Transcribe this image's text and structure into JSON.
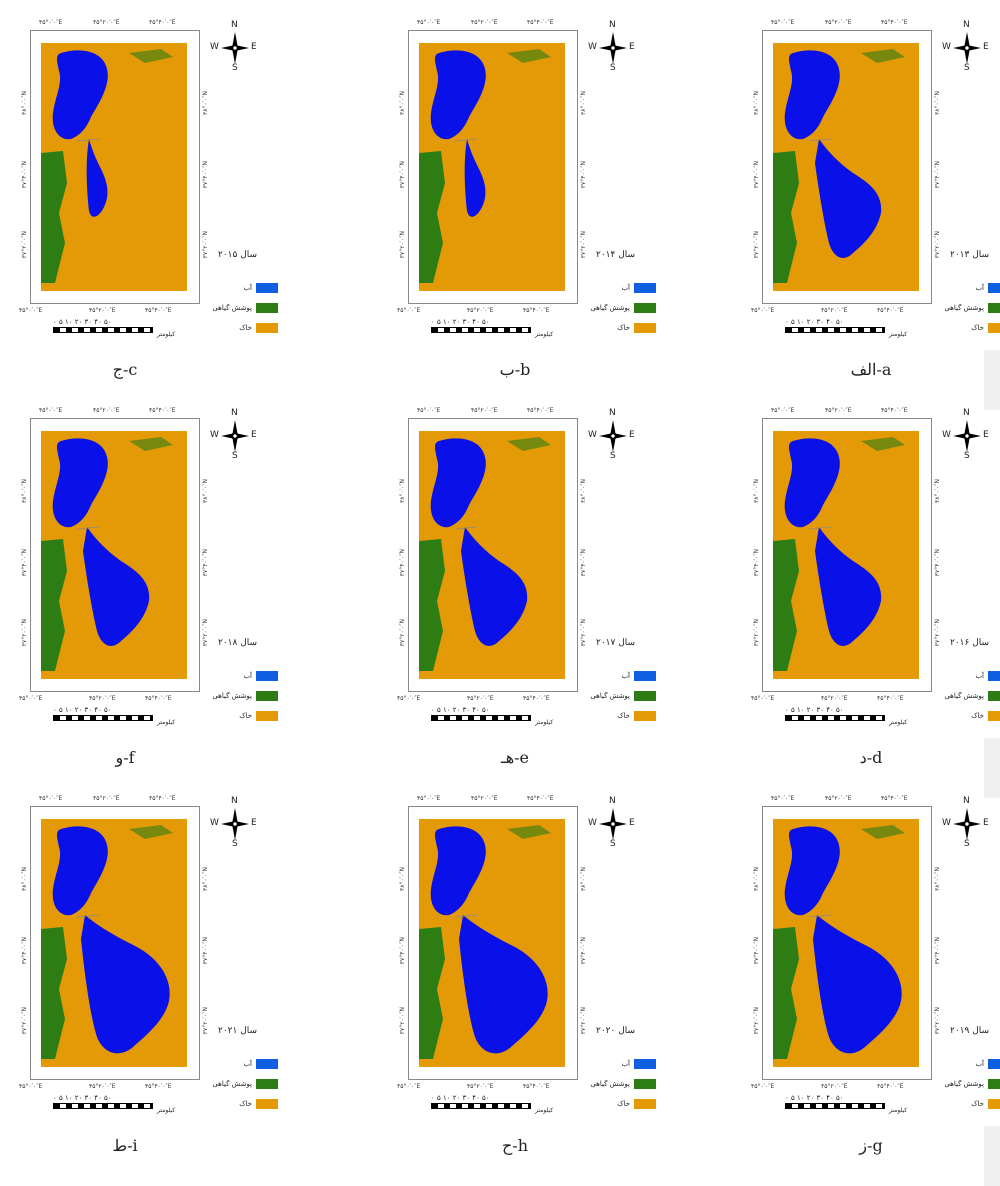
{
  "coords": {
    "top1": "۴۵°۰′۰″E",
    "top2": "۴۵°۲۰′۰″E",
    "top3": "۴۵°۴۰′۰″E",
    "bot1": "۴۵°۰′۰″E",
    "bot2": "۴۵°۲۰′۰″E",
    "bot3": "۴۵°۴۰′۰″E",
    "lat1": "۳۸°۰′۰″N",
    "lat2": "۳۷°۴۰′۰″N",
    "lat3": "۳۷°۲۰′۰″N"
  },
  "compass": {
    "n": "N",
    "s": "S",
    "e": "E",
    "w": "W"
  },
  "legend": {
    "water": "آب",
    "vegetation": "پوشش گیاهی",
    "soil": "خاک"
  },
  "scale": {
    "numbers": "۰ ۵ ۱۰  ۲۰  ۳۰  ۴۰  ۵۰",
    "unit": "کیلومتر"
  },
  "colors": {
    "water": "#0a10e8",
    "vegetation": "#2e7d14",
    "soil": "#e39a06"
  },
  "panels": [
    {
      "id": "c",
      "year": "سال ۲۰۱۵",
      "caption": "ج-c"
    },
    {
      "id": "b",
      "year": "سال ۲۰۱۴",
      "caption": "ب-b"
    },
    {
      "id": "a",
      "year": "سال ۲۰۱۳",
      "caption": "الف-a"
    },
    {
      "id": "f",
      "year": "سال ۲۰۱۸",
      "caption": "و-f"
    },
    {
      "id": "e",
      "year": "سال ۲۰۱۷",
      "caption": "هـ-e"
    },
    {
      "id": "d",
      "year": "سال ۲۰۱۶",
      "caption": "د-d"
    },
    {
      "id": "i",
      "year": "سال ۲۰۲۱",
      "caption": "ط-i"
    },
    {
      "id": "h",
      "year": "سال ۲۰۲۰",
      "caption": "ح-h"
    },
    {
      "id": "g",
      "year": "سال ۲۰۱۹",
      "caption": "ز-g"
    }
  ]
}
